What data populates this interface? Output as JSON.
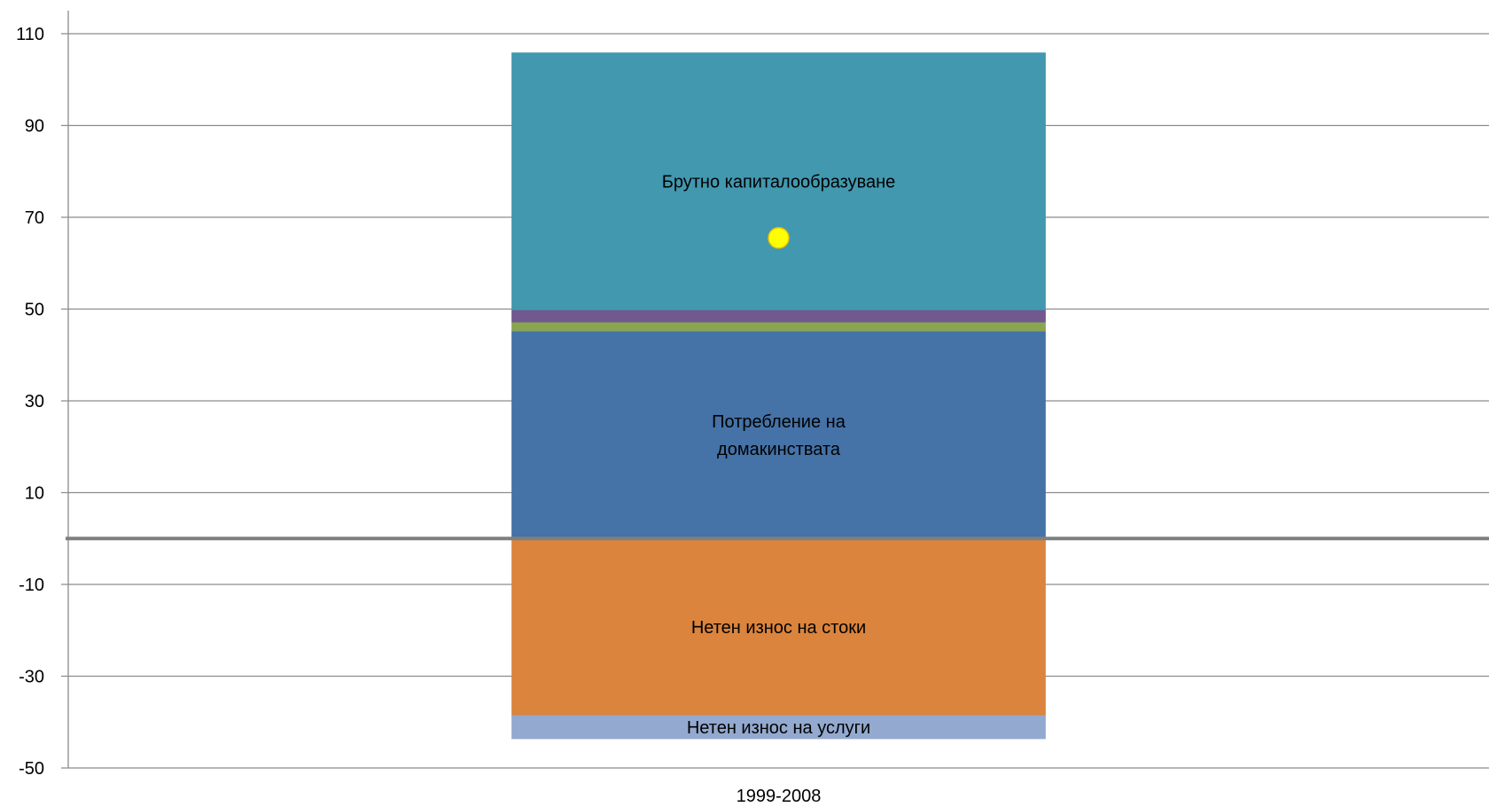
{
  "chart_data": {
    "type": "bar",
    "stacked": true,
    "categories": [
      "1999-2008"
    ],
    "ylim": [
      -50,
      110
    ],
    "yticks": [
      110,
      90,
      70,
      50,
      30,
      10,
      -10,
      -30,
      -50
    ],
    "grid": true,
    "series": [
      {
        "name": "Потребление на домакинствата",
        "label_lines": [
          "Потребление на",
          "домакинствата"
        ],
        "values": [
          45.2
        ],
        "color": "#4572A7"
      },
      {
        "name": "",
        "values": [
          1.9
        ],
        "color": "#89A54E"
      },
      {
        "name": "",
        "values": [
          2.7
        ],
        "color": "#71588F"
      },
      {
        "name": "Брутно капиталообразуване",
        "label_lines": [
          "Брутно капиталообразуване"
        ],
        "values": [
          56.1
        ],
        "color": "#4198AF"
      },
      {
        "name": "Нетен износ на стоки",
        "label_lines": [
          "Нетен износ на стоки"
        ],
        "values": [
          -38.5
        ],
        "color": "#DB843D"
      },
      {
        "name": "Нетен износ на услуги",
        "label_lines": [
          "Нетен износ на услуги"
        ],
        "values": [
          -5.2
        ],
        "color": "#93A9CF"
      }
    ],
    "marker": {
      "value": 65.5,
      "color": "#FFFF00"
    }
  }
}
